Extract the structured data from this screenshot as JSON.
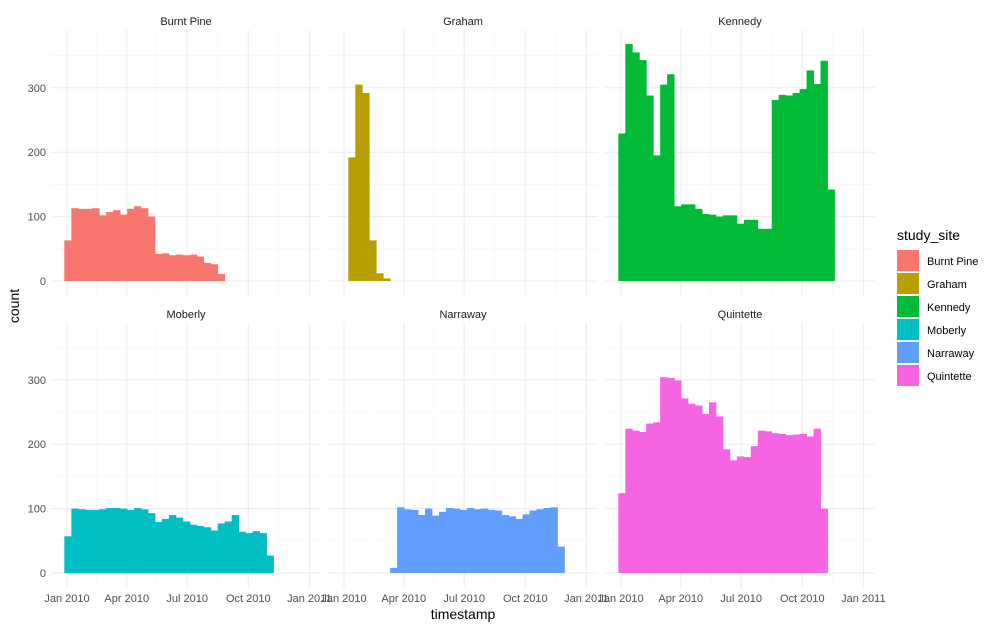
{
  "chart_data": {
    "type": "bar",
    "subtype": "faceted-histogram",
    "xlabel": "timestamp",
    "ylabel": "count",
    "ylim": [
      0,
      380
    ],
    "y_ticks": [
      0,
      100,
      200,
      300
    ],
    "x_tick_labels": [
      "Jan 2010",
      "Apr 2010",
      "Jul 2010",
      "Oct 2010",
      "Jan 2011"
    ],
    "x_tick_positions_days": [
      0,
      90,
      181,
      273,
      365
    ],
    "bin_width_days": 10.5,
    "first_bin_start_days": -4,
    "grid": true,
    "legend": {
      "title": "study_site",
      "position": "right",
      "entries": [
        "Burnt Pine",
        "Graham",
        "Kennedy",
        "Moberly",
        "Narraway",
        "Quintette"
      ]
    },
    "facets": [
      {
        "name": "Burnt Pine",
        "color": "#F8766D",
        "values": [
          63,
          113,
          112,
          112,
          113,
          102,
          107,
          110,
          103,
          112,
          116,
          113,
          100,
          42,
          43,
          40,
          41,
          40,
          41,
          38,
          28,
          26,
          11
        ]
      },
      {
        "name": "Graham",
        "color": "#B79F00",
        "values": [
          0,
          192,
          305,
          292,
          63,
          12,
          4
        ]
      },
      {
        "name": "Kennedy",
        "color": "#00BA38",
        "values": [
          229,
          368,
          355,
          343,
          288,
          195,
          305,
          321,
          116,
          119,
          119,
          112,
          104,
          103,
          100,
          102,
          102,
          89,
          95,
          95,
          81,
          81,
          281,
          289,
          288,
          292,
          298,
          327,
          306,
          342,
          142
        ]
      },
      {
        "name": "Moberly",
        "color": "#00BFC4",
        "values": [
          57,
          100,
          99,
          98,
          98,
          99,
          101,
          101,
          100,
          98,
          101,
          99,
          93,
          79,
          84,
          90,
          86,
          80,
          75,
          73,
          71,
          66,
          77,
          80,
          90,
          64,
          62,
          65,
          62,
          27
        ]
      },
      {
        "name": "Narraway",
        "color": "#619CFF",
        "values": [
          0,
          0,
          0,
          0,
          0,
          0,
          0,
          8,
          102,
          99,
          98,
          90,
          100,
          89,
          95,
          101,
          100,
          98,
          101,
          99,
          100,
          98,
          97,
          90,
          88,
          84,
          91,
          97,
          99,
          101,
          102,
          41
        ]
      },
      {
        "name": "Quintette",
        "color": "#F564E3",
        "values": [
          124,
          224,
          221,
          219,
          232,
          234,
          304,
          303,
          299,
          271,
          263,
          260,
          247,
          265,
          243,
          192,
          175,
          181,
          180,
          197,
          221,
          220,
          217,
          216,
          214,
          215,
          216,
          212,
          224,
          100
        ]
      }
    ]
  }
}
